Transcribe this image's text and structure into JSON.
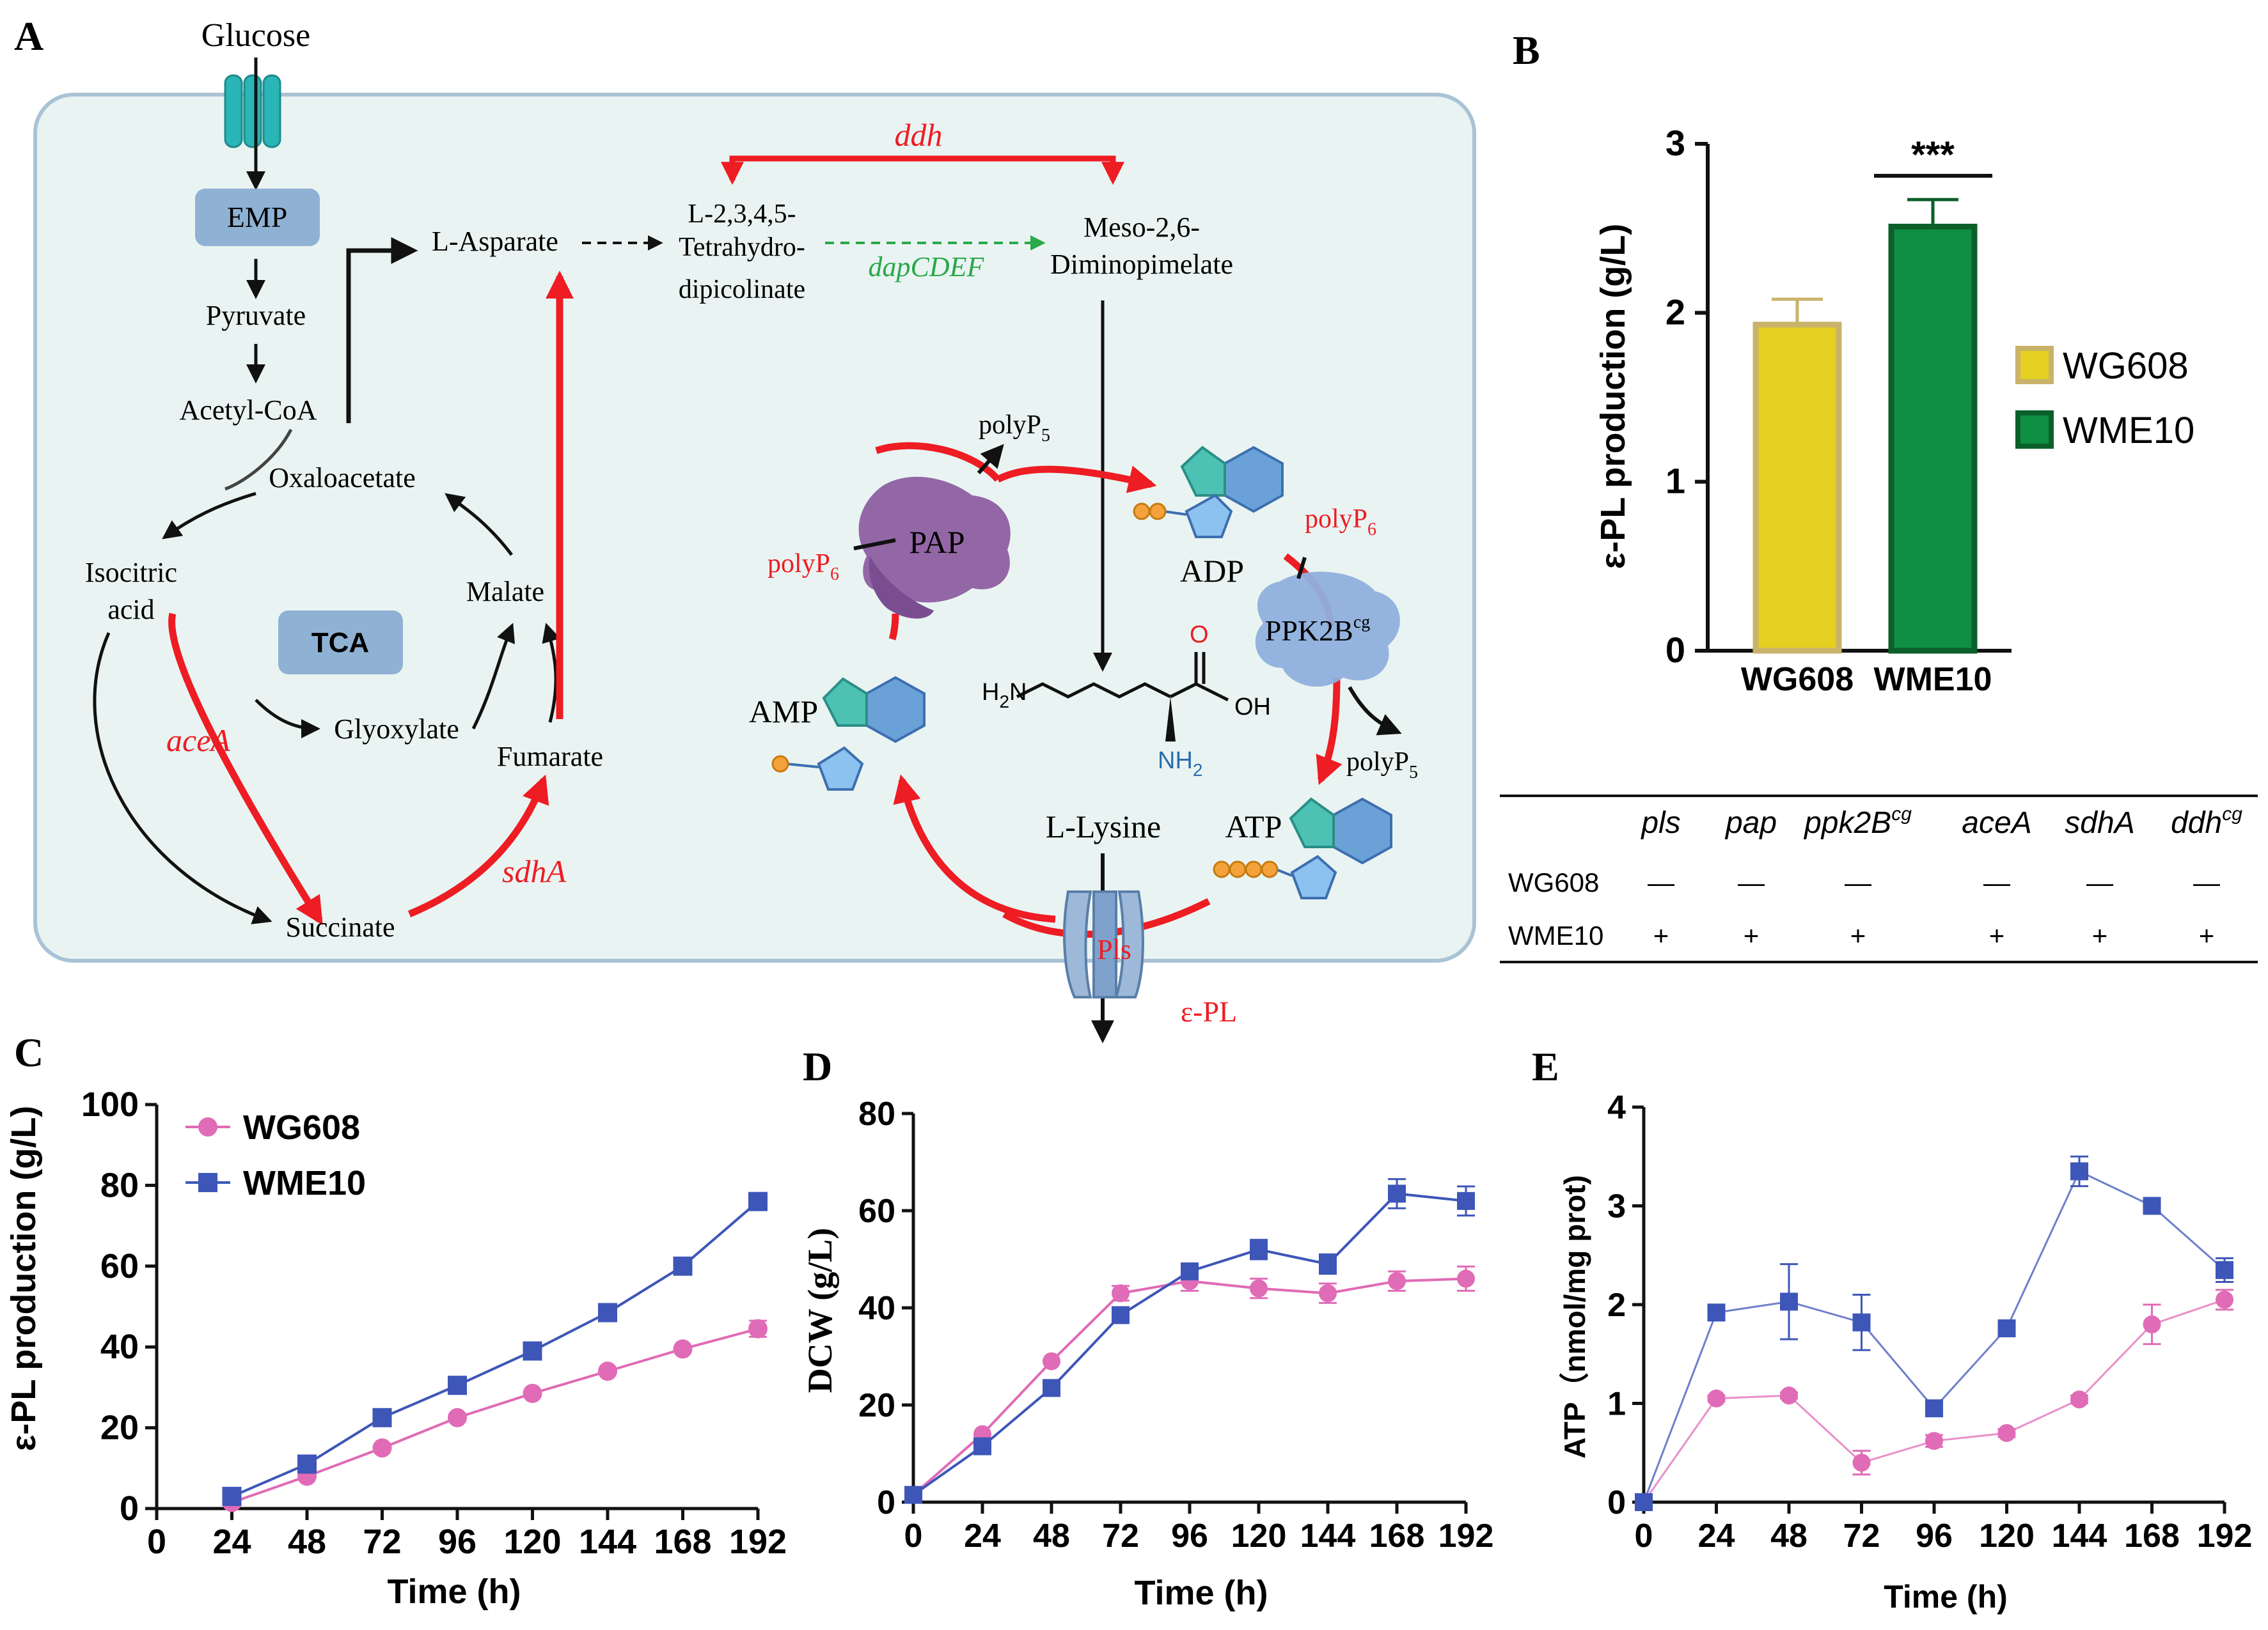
{
  "panels": {
    "A": "A",
    "B": "B",
    "C": "C",
    "D": "D",
    "E": "E"
  },
  "colors": {
    "red": "#ee1c23",
    "green": "#2aa84a",
    "cell_bg": "#e9f4f2",
    "cell_border": "#a9c3d6",
    "emp": "#8fb1d3",
    "wg608_fill": "#e3d020",
    "wg608_edge": "#c9b36a",
    "wme10_fill": "#0e8f43",
    "wme10_edge": "#0b5f2a",
    "pink": "#e06bb6",
    "blue": "#3d56b8",
    "pap": "#8b5aa0",
    "ppk": "#8fb0dd",
    "channel": "#2ab5b7",
    "pls": "#9db8d8"
  },
  "icons": [
    "glucose-transporter-icon",
    "pap-enzyme-icon",
    "ppk2b-enzyme-icon",
    "pls-channel-icon",
    "adp-molecule-icon",
    "amp-molecule-icon",
    "atp-molecule-icon",
    "lysine-structure-icon"
  ],
  "pathway": {
    "glucose": "Glucose",
    "emp": "EMP",
    "pyruvate": "Pyruvate",
    "acetyl_coa": "Acetyl-CoA",
    "oxaloacetate": "Oxaloacetate",
    "isocitric_1": "Isocitric",
    "isocitric_2": "acid",
    "tca": "TCA",
    "malate": "Malate",
    "glyoxylate": "Glyoxylate",
    "fumarate": "Fumarate",
    "succinate": "Succinate",
    "aceA": "aceA",
    "sdhA": "sdhA",
    "l_asparate": "L-Asparate",
    "thdp_1": "L-2,3,4,5-",
    "thdp_2": "Tetrahydro-",
    "thdp_3": "dipicolinate",
    "ddh": "ddh",
    "dapCDEF": "dapCDEF",
    "meso_1": "Meso-2,6-",
    "meso_2": "Diminopimelate",
    "polyP5_top": "polyP5",
    "pap": "PAP",
    "polyP6_left": "polyP6",
    "adp": "ADP",
    "polyP6_right": "polyP6",
    "ppk2b": "PPK2Bcg",
    "amp": "AMP",
    "polyP5_right": "polyP5",
    "atp": "ATP",
    "l_lysine": "L-Lysine",
    "pls": "Pls",
    "epl": "ε-PL",
    "lys_h2n": "H2N",
    "lys_o": "O",
    "lys_oh": "OH",
    "lys_nh2": "NH2"
  },
  "charts": {
    "B": {
      "type": "bar",
      "categories": [
        "WG608",
        "WME10"
      ],
      "values": [
        1.93,
        2.51
      ],
      "errors": [
        0.15,
        0.16
      ],
      "ylabel": "ε-PL production (g/L)",
      "ylim": [
        0,
        3
      ],
      "yticks": [
        "0",
        "1",
        "2",
        "3"
      ],
      "significance": "***",
      "legend": [
        "WG608",
        "WME10"
      ]
    },
    "table": {
      "headers": [
        "pls",
        "pap",
        "ppk2B",
        "aceA",
        "sdhA",
        "ddh"
      ],
      "header_sup": {
        "ppk2B": "cg",
        "ddh": "cg"
      },
      "rows": [
        {
          "strain": "WG608",
          "values": [
            "—",
            "—",
            "—",
            "—",
            "—",
            "—"
          ]
        },
        {
          "strain": "WME10",
          "values": [
            "+",
            "+",
            "+",
            "+",
            "+",
            "+"
          ]
        }
      ]
    },
    "C": {
      "type": "line",
      "xlabel": "Time (h)",
      "ylabel": "ε-PL production (g/L)",
      "x": [
        24,
        48,
        72,
        96,
        120,
        144,
        168,
        192
      ],
      "xticks": [
        "0",
        "24",
        "48",
        "72",
        "96",
        "120",
        "144",
        "168",
        "192"
      ],
      "ylim": [
        0,
        100
      ],
      "yticks": [
        "0",
        "20",
        "40",
        "60",
        "80",
        "100"
      ],
      "series": [
        {
          "name": "WG608",
          "marker": "circle",
          "values": [
            1.5,
            8,
            15,
            22.5,
            28.5,
            34,
            39.5,
            44.5
          ],
          "errors": [
            0,
            0,
            0,
            0,
            0,
            0,
            0,
            2
          ]
        },
        {
          "name": "WME10",
          "marker": "square",
          "values": [
            3,
            11,
            22.5,
            30.5,
            39,
            48.5,
            60,
            76
          ],
          "errors": [
            0,
            0,
            0,
            0,
            0,
            0,
            2,
            0
          ]
        }
      ]
    },
    "D": {
      "type": "line",
      "xlabel": "Time (h)",
      "ylabel": "DCW (g/L)",
      "x": [
        0,
        24,
        48,
        72,
        96,
        120,
        144,
        168,
        192
      ],
      "xticks": [
        "0",
        "24",
        "48",
        "72",
        "96",
        "120",
        "144",
        "168",
        "192"
      ],
      "ylim": [
        0,
        80
      ],
      "yticks": [
        "0",
        "20",
        "40",
        "60",
        "80"
      ],
      "series": [
        {
          "name": "WG608",
          "marker": "circle",
          "values": [
            1.5,
            14,
            29,
            43,
            45.5,
            44,
            43,
            45.5,
            46
          ],
          "errors": [
            0,
            0,
            0,
            1.5,
            2,
            2,
            2,
            2,
            2.5
          ]
        },
        {
          "name": "WME10",
          "marker": "square",
          "values": [
            1.5,
            11.5,
            23.5,
            38.5,
            47.5,
            52,
            49,
            63.5,
            62
          ],
          "errors": [
            0,
            0,
            0,
            1.5,
            1.5,
            2,
            2,
            3,
            3
          ]
        }
      ]
    },
    "E": {
      "type": "line",
      "xlabel": "Time (h)",
      "ylabel": "ATP（nmol/mg prot)",
      "x": [
        0,
        24,
        48,
        72,
        96,
        120,
        144,
        168,
        192
      ],
      "xticks": [
        "0",
        "24",
        "48",
        "72",
        "96",
        "120",
        "144",
        "168",
        "192"
      ],
      "ylim": [
        0,
        4
      ],
      "yticks": [
        "0",
        "1",
        "2",
        "3",
        "4"
      ],
      "series": [
        {
          "name": "WG608",
          "marker": "circle",
          "values": [
            0,
            1.05,
            1.08,
            0.4,
            0.62,
            0.7,
            1.04,
            1.8,
            2.05
          ],
          "errors": [
            0,
            0.03,
            0.03,
            0.12,
            0.06,
            0.04,
            0.04,
            0.2,
            0.1
          ]
        },
        {
          "name": "WME10",
          "marker": "square",
          "values": [
            0,
            1.92,
            2.03,
            1.82,
            0.95,
            1.76,
            3.35,
            3.0,
            2.35
          ],
          "errors": [
            0,
            0.05,
            0.38,
            0.28,
            0.05,
            0.05,
            0.15,
            0.08,
            0.12
          ]
        }
      ]
    }
  },
  "chart_data": [
    {
      "type": "bar",
      "title": "B",
      "categories": [
        "WG608",
        "WME10"
      ],
      "values": [
        1.93,
        2.51
      ],
      "ylabel": "ε-PL production (g/L)",
      "ylim": [
        0,
        3
      ]
    },
    {
      "type": "line",
      "title": "C",
      "xlabel": "Time (h)",
      "ylabel": "ε-PL production (g/L)",
      "x": [
        24,
        48,
        72,
        96,
        120,
        144,
        168,
        192
      ],
      "ylim": [
        0,
        100
      ],
      "series": [
        {
          "name": "WG608",
          "values": [
            1.5,
            8,
            15,
            22.5,
            28.5,
            34,
            39.5,
            44.5
          ]
        },
        {
          "name": "WME10",
          "values": [
            3,
            11,
            22.5,
            30.5,
            39,
            48.5,
            60,
            76
          ]
        }
      ]
    },
    {
      "type": "line",
      "title": "D",
      "xlabel": "Time (h)",
      "ylabel": "DCW (g/L)",
      "x": [
        0,
        24,
        48,
        72,
        96,
        120,
        144,
        168,
        192
      ],
      "ylim": [
        0,
        80
      ],
      "series": [
        {
          "name": "WG608",
          "values": [
            1.5,
            14,
            29,
            43,
            45.5,
            44,
            43,
            45.5,
            46
          ]
        },
        {
          "name": "WME10",
          "values": [
            1.5,
            11.5,
            23.5,
            38.5,
            47.5,
            52,
            49,
            63.5,
            62
          ]
        }
      ]
    },
    {
      "type": "line",
      "title": "E",
      "xlabel": "Time (h)",
      "ylabel": "ATP（nmol/mg prot)",
      "x": [
        0,
        24,
        48,
        72,
        96,
        120,
        144,
        168,
        192
      ],
      "ylim": [
        0,
        4
      ],
      "series": [
        {
          "name": "WG608",
          "values": [
            0,
            1.05,
            1.08,
            0.4,
            0.62,
            0.7,
            1.04,
            1.8,
            2.05
          ]
        },
        {
          "name": "WME10",
          "values": [
            0,
            1.92,
            2.03,
            1.82,
            0.95,
            1.76,
            3.35,
            3.0,
            2.35
          ]
        }
      ]
    }
  ]
}
